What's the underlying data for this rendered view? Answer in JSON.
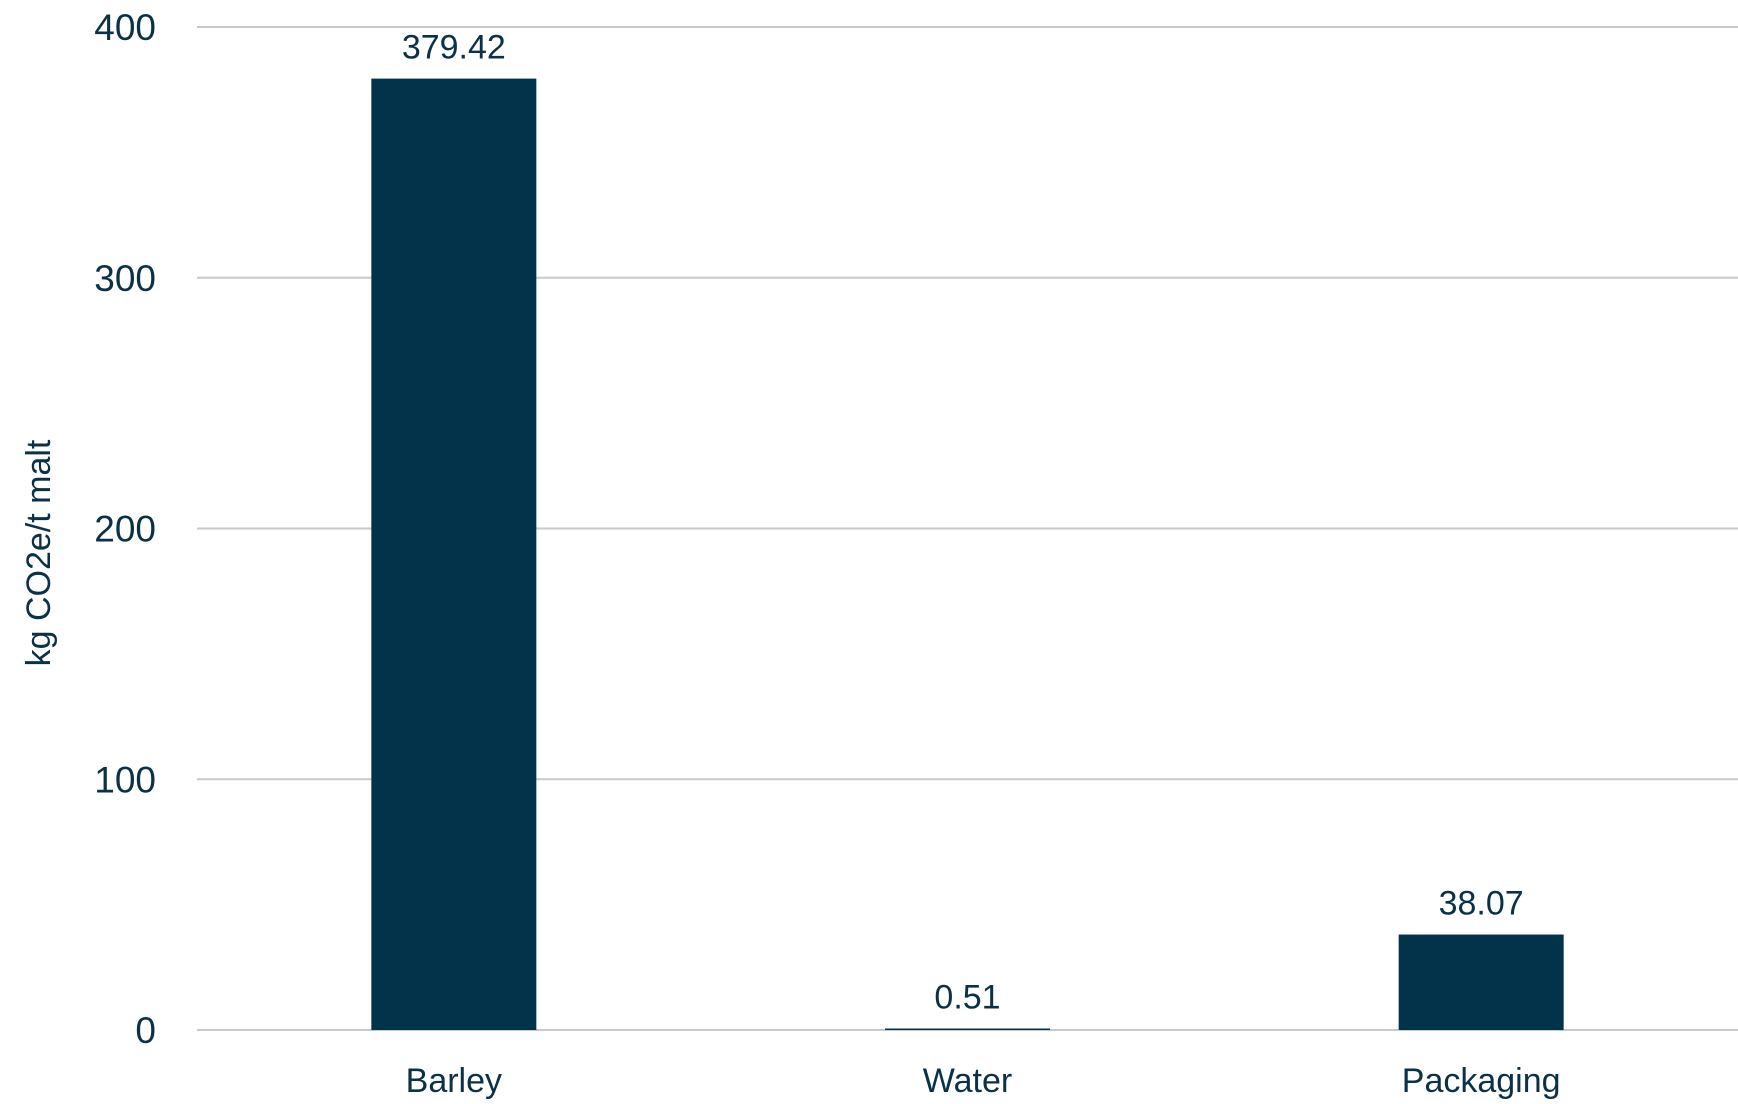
{
  "chart_data": {
    "type": "bar",
    "title": "",
    "xlabel": "",
    "ylabel": "kg CO2e/t malt",
    "categories": [
      "Barley",
      "Water",
      "Packaging"
    ],
    "values": [
      379.42,
      0.51,
      38.07
    ],
    "data_labels": [
      "379.42",
      "0.51",
      "38.07"
    ],
    "ylim": [
      0,
      400
    ],
    "yticks": [
      "0",
      "100",
      "200",
      "300",
      "400"
    ],
    "grid": true,
    "legend": "none",
    "colors": {
      "bar": "#03334a",
      "text": "#0b3148",
      "grid": "#c9c9c9"
    }
  }
}
